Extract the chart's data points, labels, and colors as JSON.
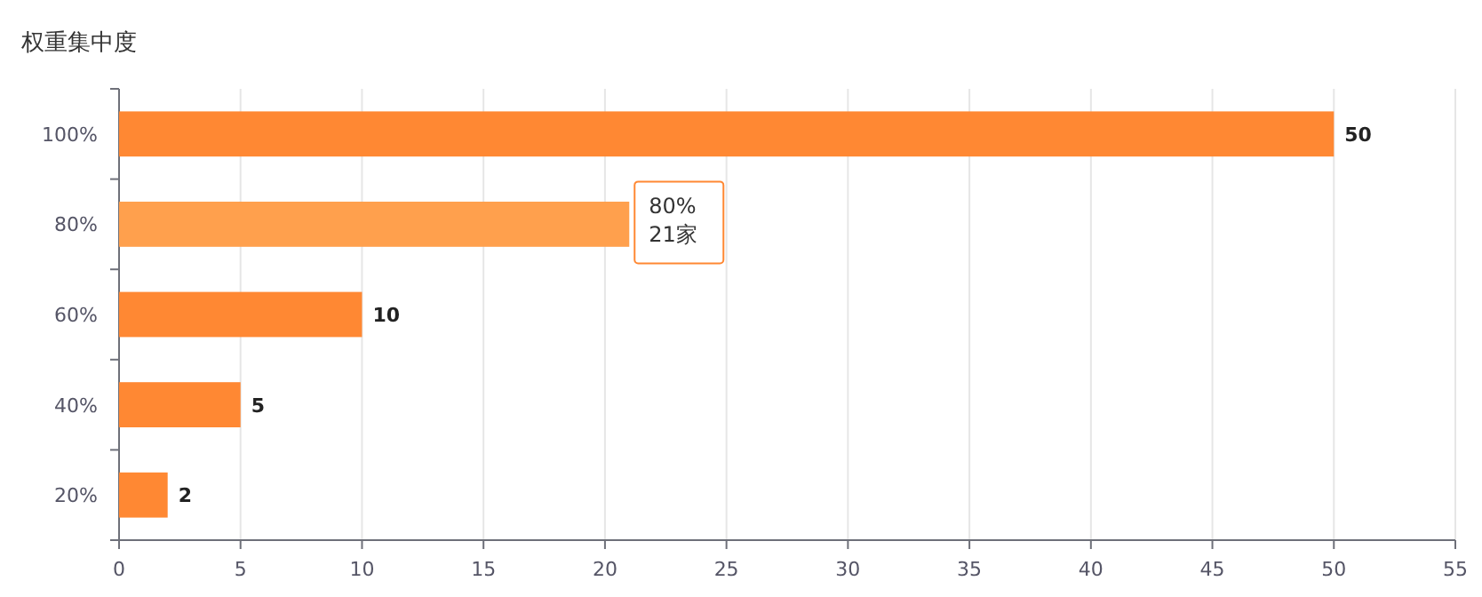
{
  "chart_data": {
    "type": "bar",
    "orientation": "horizontal",
    "title": "权重集中度",
    "categories": [
      "100%",
      "80%",
      "60%",
      "40%",
      "20%"
    ],
    "values": [
      50,
      21,
      10,
      5,
      2
    ],
    "colors": [
      "#ff8833",
      "#ffa04d",
      "#ff8833",
      "#ff8833",
      "#ff8833"
    ],
    "value_labels": [
      "50",
      null,
      "10",
      "5",
      "2"
    ],
    "xlim": [
      0,
      55
    ],
    "xticks": [
      0,
      5,
      10,
      15,
      20,
      25,
      30,
      35,
      40,
      45,
      50,
      55
    ],
    "grid": "x",
    "annotations": [
      {
        "text": "80%\n21家",
        "x": 21,
        "y": "80%"
      }
    ]
  }
}
